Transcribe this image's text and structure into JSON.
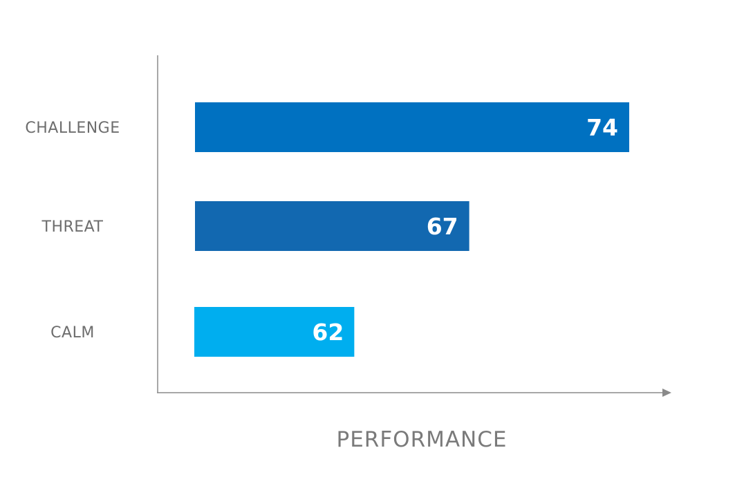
{
  "chart_data": {
    "type": "bar",
    "orientation": "horizontal",
    "categories": [
      "CHALLENGE",
      "THREAT",
      "CALM"
    ],
    "values": [
      74,
      67,
      62
    ],
    "colors": [
      "#0071c1",
      "#1268b0",
      "#00aeef"
    ],
    "xlabel": "PERFORMANCE",
    "ylabel": "",
    "xlim": [
      55,
      80
    ],
    "grid": false,
    "legend": "none",
    "data_labels": true
  },
  "colors": {
    "axis": "#8a8a8a",
    "label_text": "#6d6d6d",
    "value_text": "#ffffff"
  }
}
